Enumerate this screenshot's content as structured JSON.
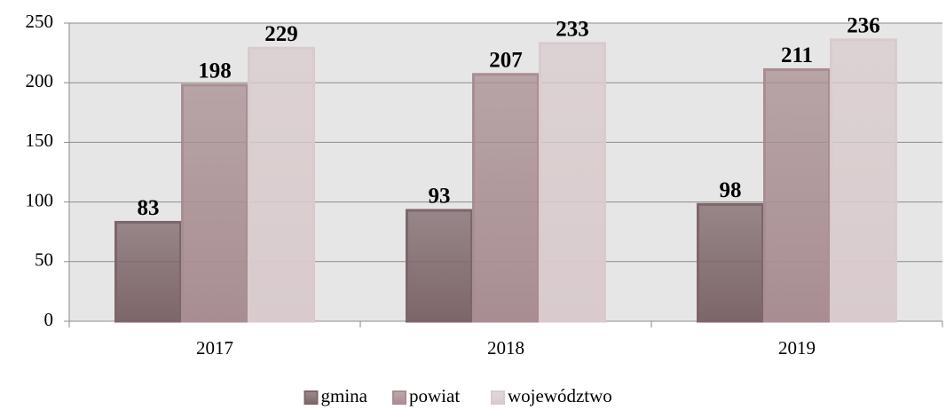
{
  "chart_data": {
    "type": "bar",
    "categories": [
      "2017",
      "2018",
      "2019"
    ],
    "series": [
      {
        "name": "gmina",
        "color": "#7d666a",
        "values": [
          83,
          93,
          98
        ]
      },
      {
        "name": "powiat",
        "color": "#a88e92",
        "values": [
          198,
          207,
          211
        ]
      },
      {
        "name": "województwo",
        "color": "#d9cbcd",
        "values": [
          229,
          233,
          236
        ]
      }
    ],
    "ylim": [
      0,
      250
    ],
    "yticks": [
      0,
      50,
      100,
      150,
      200,
      250
    ],
    "grid": true,
    "legend": "bottom"
  }
}
